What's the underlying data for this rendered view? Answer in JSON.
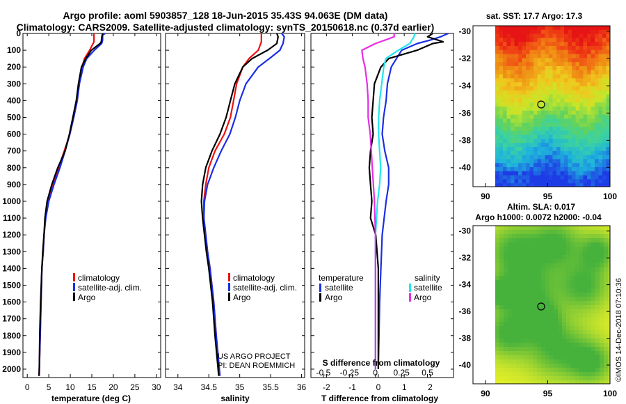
{
  "header": {
    "title_line1": "Argo profile: aoml 5903857_128 18-Jun-2015 35.43S 94.063E (DM data)",
    "title_line2": "Climatology: CARS2009. Satellite-adjusted climatology: synTS_20150618.nc (0.37d earlier)"
  },
  "colors": {
    "climatology": "#ee1111",
    "satellite": "#1a2ee6",
    "argo": "#000000",
    "sat_salinity": "#22e6ee",
    "argo_salinity_diff": "#e62ee6"
  },
  "chart_data": [
    {
      "type": "line",
      "name": "temperature",
      "xlabel": "temperature (deg C)",
      "ylabel": "",
      "xlim": [
        -1,
        31
      ],
      "ylim": [
        2050,
        0
      ],
      "xticks": [
        "0",
        "5",
        "10",
        "15",
        "20",
        "25",
        "30"
      ],
      "yticks": [
        "0",
        "100",
        "200",
        "300",
        "400",
        "500",
        "600",
        "700",
        "800",
        "900",
        "1000",
        "1100",
        "1200",
        "1300",
        "1400",
        "1500",
        "1600",
        "1700",
        "1800",
        "1900",
        "2000"
      ],
      "legend": [
        "climatology",
        "satellite-adj. clim.",
        "Argo"
      ],
      "series": [
        {
          "name": "climatology",
          "depth": [
            0,
            50,
            100,
            150,
            200,
            300,
            400,
            500,
            600,
            700,
            800,
            900,
            1000,
            1100,
            1200,
            1300,
            1400,
            1600,
            1800,
            2000,
            2040
          ],
          "values": [
            15.5,
            15.5,
            14.5,
            13.3,
            12.7,
            12.1,
            11.6,
            10.8,
            9.9,
            8.6,
            7.3,
            5.9,
            4.8,
            4.2,
            3.9,
            3.7,
            3.4,
            3.2,
            3.0,
            2.8,
            2.75
          ]
        },
        {
          "name": "satellite-adj. clim.",
          "depth": [
            0,
            10,
            40,
            60,
            100,
            150,
            200,
            300,
            400,
            500,
            600,
            700,
            800,
            900,
            1000,
            1100,
            1200,
            1300,
            1400,
            1600,
            1800,
            2000,
            2040
          ],
          "values": [
            18.1,
            17.5,
            17.5,
            17.3,
            15.6,
            13.8,
            13.0,
            12.1,
            11.6,
            10.8,
            9.9,
            8.8,
            7.6,
            6.2,
            5.0,
            4.3,
            3.9,
            3.7,
            3.4,
            3.2,
            3.0,
            2.8,
            2.75
          ]
        },
        {
          "name": "Argo",
          "depth": [
            0,
            10,
            50,
            60,
            100,
            150,
            200,
            300,
            400,
            500,
            600,
            700,
            800,
            900,
            1000,
            1100,
            1200,
            1300,
            1400,
            1600,
            1800,
            2000,
            2040
          ],
          "values": [
            17.6,
            17.4,
            17.2,
            16.9,
            14.9,
            13.6,
            12.6,
            11.9,
            11.4,
            10.6,
            9.8,
            8.8,
            7.1,
            5.7,
            4.6,
            4.1,
            3.9,
            3.6,
            3.4,
            3.1,
            2.9,
            2.8,
            2.75
          ]
        }
      ]
    },
    {
      "type": "line",
      "name": "salinity",
      "xlabel": "salinity",
      "ylabel": "",
      "xlim": [
        33.8,
        36.05
      ],
      "ylim": [
        2050,
        0
      ],
      "xticks": [
        "34",
        "34.5",
        "35",
        "35.5",
        "36"
      ],
      "legend": [
        "climatology",
        "satellite-adj. clim.",
        "Argo"
      ],
      "annotation": [
        "US ARGO PROJECT",
        "PI: DEAN ROEMMICH"
      ],
      "series": [
        {
          "name": "climatology",
          "depth": [
            0,
            50,
            100,
            150,
            200,
            300,
            400,
            500,
            600,
            700,
            800,
            900,
            1000,
            1100,
            1200,
            1300,
            1400,
            1600,
            1800,
            2000,
            2040
          ],
          "values": [
            35.35,
            35.35,
            35.3,
            35.15,
            35.05,
            34.95,
            34.9,
            34.85,
            34.75,
            34.6,
            34.5,
            34.45,
            34.42,
            34.42,
            34.45,
            34.48,
            34.52,
            34.58,
            34.62,
            34.67,
            34.68
          ]
        },
        {
          "name": "satellite-adj. clim.",
          "depth": [
            0,
            20,
            60,
            100,
            150,
            200,
            300,
            400,
            500,
            600,
            700,
            800,
            900,
            1000,
            1100,
            1200,
            1300,
            1400,
            1600,
            1800,
            2000,
            2040
          ],
          "values": [
            35.68,
            35.72,
            35.7,
            35.65,
            35.48,
            35.3,
            35.1,
            35.0,
            34.93,
            34.84,
            34.7,
            34.58,
            34.48,
            34.43,
            34.42,
            34.45,
            34.48,
            34.52,
            34.58,
            34.62,
            34.67,
            34.68
          ]
        },
        {
          "name": "Argo",
          "depth": [
            0,
            20,
            60,
            100,
            150,
            200,
            300,
            400,
            500,
            600,
            700,
            800,
            900,
            1000,
            1100,
            1200,
            1300,
            1400,
            1600,
            1800,
            2000,
            2040
          ],
          "values": [
            35.6,
            35.62,
            35.6,
            35.45,
            35.2,
            35.05,
            34.92,
            34.85,
            34.78,
            34.68,
            34.55,
            34.45,
            34.4,
            34.38,
            34.4,
            34.43,
            34.46,
            34.5,
            34.56,
            34.6,
            34.65,
            34.66
          ]
        }
      ]
    },
    {
      "type": "line",
      "name": "differences from climatology",
      "xlabel": "T difference from climatology",
      "xlabel_top": "S difference from climatology",
      "xlim": [
        -2.6,
        2.9
      ],
      "ylim": [
        2050,
        0
      ],
      "xticks": [
        "-2",
        "-1",
        "0",
        "1",
        "2"
      ],
      "s_ticks": [
        "-0.5",
        "-0.25",
        "0",
        "0.25",
        "0.5"
      ],
      "legend_left_title": "temperature",
      "legend_right_title": "salinity",
      "legend_left": [
        "satellite",
        "Argo"
      ],
      "legend_right": [
        "satellite",
        "Argo"
      ],
      "series": [
        {
          "name": "temperature satellite",
          "depth": [
            0,
            20,
            40,
            60,
            100,
            150,
            200,
            300,
            400,
            500,
            600,
            700,
            800,
            900,
            1000,
            1200,
            1400,
            1600,
            2000
          ],
          "values": [
            2.7,
            2.4,
            2.0,
            1.5,
            0.9,
            0.7,
            0.5,
            0.35,
            0.3,
            0.2,
            0.15,
            0.25,
            0.4,
            0.4,
            0.3,
            0.15,
            0.1,
            0.05,
            0.0
          ]
        },
        {
          "name": "temperature Argo",
          "depth": [
            0,
            20,
            50,
            60,
            100,
            150,
            200,
            300,
            400,
            500,
            600,
            700,
            800,
            900,
            1000,
            1100,
            1200,
            1400,
            1600,
            2000
          ],
          "values": [
            2.1,
            1.9,
            2.5,
            2.1,
            1.5,
            0.4,
            0.1,
            -0.15,
            -0.2,
            -0.25,
            -0.2,
            -0.3,
            -0.35,
            -0.3,
            -0.25,
            -0.3,
            -0.1,
            0.0,
            0.0,
            0.0
          ]
        },
        {
          "name": "salinity satellite",
          "depth": [
            0,
            20,
            60,
            100,
            150,
            200,
            300,
            400,
            500,
            600,
            700,
            800,
            900,
            1000,
            1200,
            1400,
            1600,
            2000
          ],
          "values": [
            0.38,
            0.37,
            0.33,
            0.22,
            0.1,
            0.08,
            0.06,
            0.04,
            0.03,
            0.03,
            0.04,
            0.05,
            0.04,
            0.02,
            0.0,
            0.0,
            0.0,
            0.0
          ]
        },
        {
          "name": "salinity Argo",
          "depth": [
            0,
            20,
            60,
            100,
            150,
            200,
            300,
            400,
            500,
            600,
            700,
            800,
            900,
            1000,
            1200,
            1400,
            1600,
            2000
          ],
          "values": [
            0.18,
            0.18,
            0.0,
            -0.13,
            -0.12,
            -0.1,
            -0.08,
            -0.07,
            -0.07,
            -0.05,
            -0.04,
            -0.03,
            -0.02,
            -0.01,
            0.0,
            0.0,
            0.0,
            0.0
          ]
        }
      ]
    },
    {
      "type": "heatmap",
      "name": "sat SST map",
      "title": "sat. SST: 17.7 Argo: 17.3",
      "xlim": [
        89,
        100
      ],
      "ylim": [
        -41.4,
        -29.6
      ],
      "xticks": [
        "90",
        "95",
        "100"
      ],
      "yticks": [
        "-30",
        "-32",
        "-34",
        "-36",
        "-38",
        "-40"
      ],
      "marker": {
        "lon": 94.06,
        "lat": -35.43
      }
    },
    {
      "type": "heatmap",
      "name": "Altimetry SLA map",
      "title": "Altim. SLA: 0.017",
      "subtitle": "Argo h1000: 0.0072 h2000: -0.04",
      "xlim": [
        89,
        100
      ],
      "ylim": [
        -41.4,
        -29.6
      ],
      "xticks": [
        "90",
        "95",
        "100"
      ],
      "yticks": [
        "-30",
        "-32",
        "-34",
        "-36",
        "-38",
        "-40"
      ],
      "marker": {
        "lon": 94.06,
        "lat": -35.43
      }
    }
  ],
  "footer": {
    "watermark": "©IMOS 14-Dec-2018 07:10:36"
  }
}
